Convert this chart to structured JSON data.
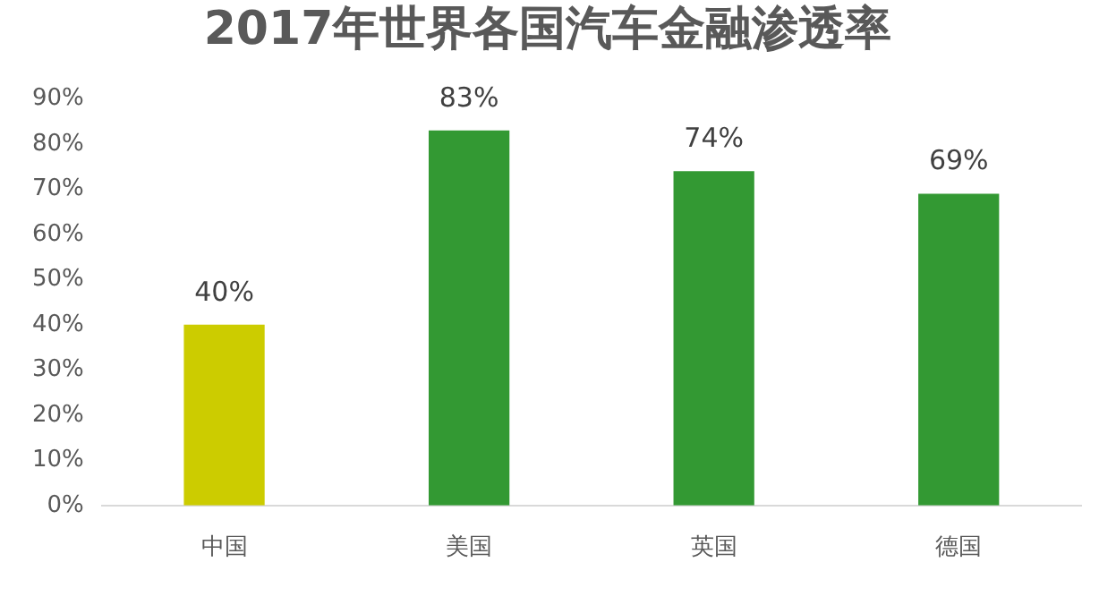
{
  "chart_data": {
    "type": "bar",
    "title": "2017年世界各国汽车金融渗透率",
    "categories": [
      "中国",
      "美国",
      "英国",
      "德国"
    ],
    "values": [
      40,
      83,
      74,
      69
    ],
    "colors": [
      "#cccc00",
      "#339933",
      "#339933",
      "#339933"
    ],
    "value_labels": [
      "40%",
      "83%",
      "74%",
      "69%"
    ],
    "ylim": [
      0,
      90
    ],
    "yticks": [
      {
        "value": 0,
        "label": "0%"
      },
      {
        "value": 10,
        "label": "10%"
      },
      {
        "value": 20,
        "label": "20%"
      },
      {
        "value": 30,
        "label": "30%"
      },
      {
        "value": 40,
        "label": "40%"
      },
      {
        "value": 50,
        "label": "50%"
      },
      {
        "value": 60,
        "label": "60%"
      },
      {
        "value": 70,
        "label": "70%"
      },
      {
        "value": 80,
        "label": "80%"
      },
      {
        "value": 90,
        "label": "90%"
      }
    ],
    "grid": false,
    "legend": false
  }
}
